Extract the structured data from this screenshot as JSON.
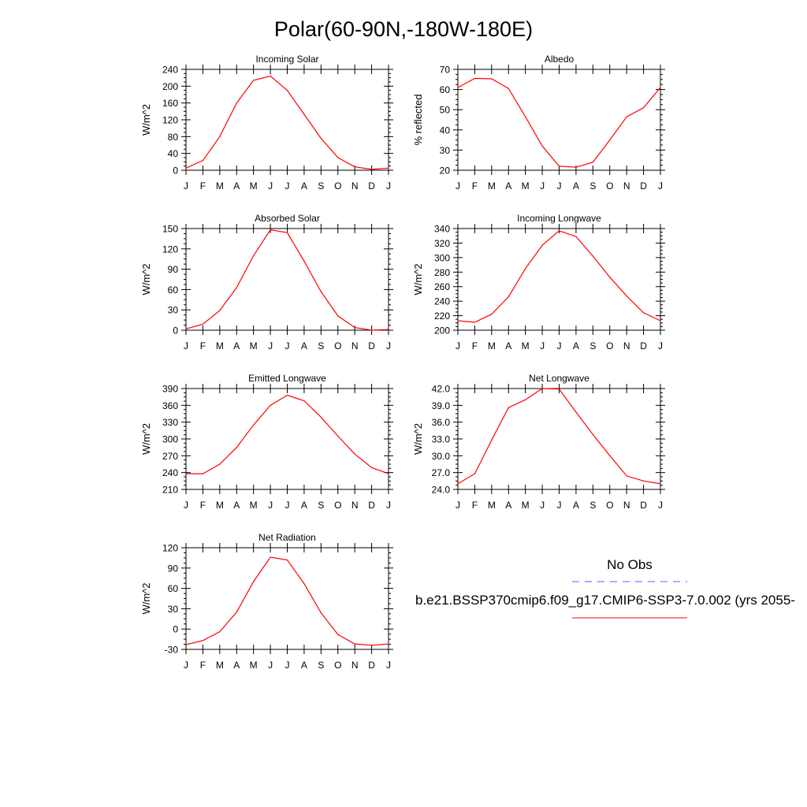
{
  "title": "Polar(60-90N,-180W-180E)",
  "legend": {
    "obs_label": "No Obs",
    "obs_color": "#5a5aff",
    "model_label": "b.e21.BSSP370cmip6.f09_g17.CMIP6-SSP3-7.0.002 (yrs 2055-",
    "model_color": "#ff0000"
  },
  "chart_data": [
    {
      "type": "line",
      "title": "Incoming Solar",
      "ylabel": "W/m^2",
      "categories": [
        "J",
        "F",
        "M",
        "A",
        "M",
        "J",
        "J",
        "A",
        "S",
        "O",
        "N",
        "D",
        "J"
      ],
      "ylim": [
        0,
        240
      ],
      "yticks": [
        0,
        40,
        80,
        120,
        160,
        200,
        240
      ],
      "ytick_labels": [
        "0",
        "40",
        "80",
        "120",
        "160",
        "200",
        "240"
      ],
      "values": [
        5,
        23,
        80,
        160,
        214,
        224,
        190,
        133,
        76,
        30,
        8,
        2,
        5
      ]
    },
    {
      "type": "line",
      "title": "Albedo",
      "ylabel": "% reflected",
      "categories": [
        "J",
        "F",
        "M",
        "A",
        "M",
        "J",
        "J",
        "A",
        "S",
        "O",
        "N",
        "D",
        "J"
      ],
      "ylim": [
        20,
        70
      ],
      "yticks": [
        20,
        30,
        40,
        50,
        60,
        70
      ],
      "ytick_labels": [
        "20",
        "30",
        "40",
        "50",
        "60",
        "70"
      ],
      "values": [
        61,
        65.5,
        65.3,
        60.5,
        46.5,
        32,
        22,
        21.5,
        24,
        35,
        46.5,
        51,
        61
      ]
    },
    {
      "type": "line",
      "title": "Absorbed Solar",
      "ylabel": "W/m^2",
      "categories": [
        "J",
        "F",
        "M",
        "A",
        "M",
        "J",
        "J",
        "A",
        "S",
        "O",
        "N",
        "D",
        "J"
      ],
      "ylim": [
        0,
        150
      ],
      "yticks": [
        0,
        30,
        60,
        90,
        120,
        150
      ],
      "ytick_labels": [
        "0",
        "30",
        "60",
        "90",
        "120",
        "150"
      ],
      "values": [
        2,
        9,
        29,
        63,
        110,
        148,
        144,
        102,
        57,
        21,
        4,
        0,
        1
      ]
    },
    {
      "type": "line",
      "title": "Incoming Longwave",
      "ylabel": "W/m^2",
      "categories": [
        "J",
        "F",
        "M",
        "A",
        "M",
        "J",
        "J",
        "A",
        "S",
        "O",
        "N",
        "D",
        "J"
      ],
      "ylim": [
        200,
        340
      ],
      "yticks": [
        200,
        220,
        240,
        260,
        280,
        300,
        320,
        340
      ],
      "ytick_labels": [
        "200",
        "220",
        "240",
        "260",
        "280",
        "300",
        "320",
        "340"
      ],
      "values": [
        213,
        211,
        222,
        246,
        285,
        317,
        337,
        329,
        302,
        273,
        247,
        224,
        213
      ]
    },
    {
      "type": "line",
      "title": "Emitted Longwave",
      "ylabel": "W/m^2",
      "categories": [
        "J",
        "F",
        "M",
        "A",
        "M",
        "J",
        "J",
        "A",
        "S",
        "O",
        "N",
        "D",
        "J"
      ],
      "ylim": [
        210,
        390
      ],
      "yticks": [
        210,
        240,
        270,
        300,
        330,
        360,
        390
      ],
      "ytick_labels": [
        "210",
        "240",
        "270",
        "300",
        "330",
        "360",
        "390"
      ],
      "values": [
        238,
        238,
        255,
        285,
        325,
        360,
        378,
        368,
        339,
        305,
        273,
        249,
        238
      ]
    },
    {
      "type": "line",
      "title": "Net Longwave",
      "ylabel": "W/m^2",
      "categories": [
        "J",
        "F",
        "M",
        "A",
        "M",
        "J",
        "J",
        "A",
        "S",
        "O",
        "N",
        "D",
        "J"
      ],
      "ylim": [
        24,
        42
      ],
      "yticks": [
        24,
        27,
        30,
        33,
        36,
        39,
        42
      ],
      "ytick_labels": [
        "24.0",
        "27.0",
        "30.0",
        "33.0",
        "36.0",
        "39.0",
        "42.0"
      ],
      "values": [
        25,
        26.8,
        32.8,
        38.6,
        40,
        42,
        41.9,
        37.8,
        33.8,
        30,
        26.4,
        25.5,
        25
      ]
    },
    {
      "type": "line",
      "title": "Net Radiation",
      "ylabel": "W/m^2",
      "categories": [
        "J",
        "F",
        "M",
        "A",
        "M",
        "J",
        "J",
        "A",
        "S",
        "O",
        "N",
        "D",
        "J"
      ],
      "ylim": [
        -30,
        120
      ],
      "yticks": [
        -30,
        0,
        30,
        60,
        90,
        120
      ],
      "ytick_labels": [
        "-30",
        "0",
        "30",
        "60",
        "90",
        "120"
      ],
      "values": [
        -23,
        -17,
        -4,
        25,
        70,
        106,
        102,
        67,
        24,
        -8,
        -22,
        -24,
        -22
      ]
    }
  ]
}
